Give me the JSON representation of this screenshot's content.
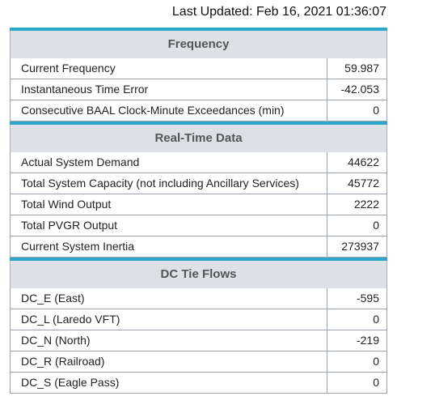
{
  "header": {
    "last_updated": "Last Updated: Feb 16, 2021 01:36:07"
  },
  "sections": [
    {
      "title": "Frequency",
      "rows": [
        [
          "Current Frequency",
          "59.987"
        ],
        [
          "Instantaneous Time Error",
          "-42.053"
        ],
        [
          "Consecutive BAAL Clock-Minute Exceedances (min)",
          "0"
        ]
      ]
    },
    {
      "title": "Real-Time Data",
      "rows": [
        [
          "Actual System Demand",
          "44622"
        ],
        [
          "Total System Capacity (not including Ancillary Services)",
          "45772"
        ],
        [
          "Total Wind Output",
          "2222"
        ],
        [
          "Total PVGR Output",
          "0"
        ],
        [
          "Current System Inertia",
          "273937"
        ]
      ]
    },
    {
      "title": "DC Tie Flows",
      "rows": [
        [
          "DC_E (East)",
          "-595"
        ],
        [
          "DC_L (Laredo VFT)",
          "0"
        ],
        [
          "DC_N (North)",
          "-219"
        ],
        [
          "DC_R (Railroad)",
          "0"
        ],
        [
          "DC_S (Eagle Pass)",
          "0"
        ]
      ]
    }
  ]
}
